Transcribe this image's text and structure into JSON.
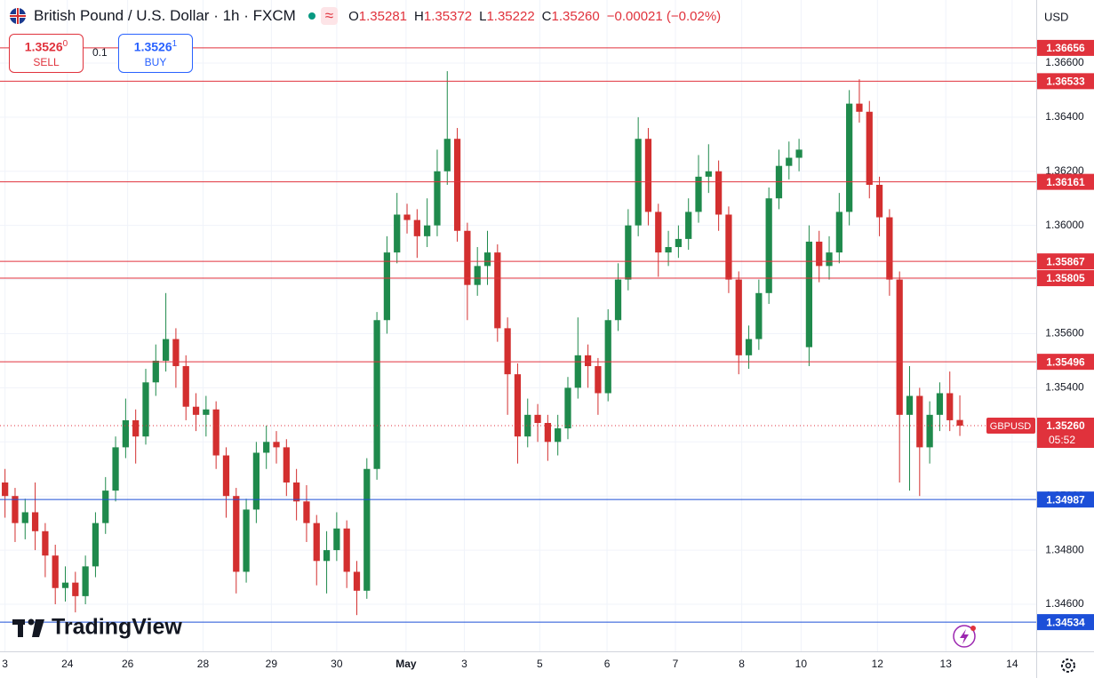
{
  "header": {
    "title": "British Pound / U.S. Dollar · 1h · FXCM",
    "ohlc": [
      {
        "k": "O",
        "v": "1.35281"
      },
      {
        "k": "H",
        "v": "1.35372"
      },
      {
        "k": "L",
        "v": "1.35222"
      },
      {
        "k": "C",
        "v": "1.35260"
      }
    ],
    "change": "−0.00021 (−0.02%)"
  },
  "trade": {
    "sell_price": "1.3526",
    "sell_sup": "0",
    "sell": "SELL",
    "spread": "0.1",
    "buy_price": "1.3526",
    "buy_sup": "1",
    "buy": "BUY"
  },
  "currency": "USD",
  "logo": "TradingView",
  "chart_data": {
    "type": "candlestick",
    "up_color": "#1f8a4c",
    "down_color": "#d32f2f",
    "open": [
      1.3505,
      1.35,
      1.349,
      1.3494,
      1.3487,
      1.3478,
      1.3466,
      1.3468,
      1.3463,
      1.3474,
      1.349,
      1.3502,
      1.3518,
      1.3528,
      1.3522,
      1.3542,
      1.355,
      1.3558,
      1.3548,
      1.3533,
      1.353,
      1.3532,
      1.3515,
      1.35,
      1.3472,
      1.3495,
      1.3516,
      1.352,
      1.3518,
      1.3505,
      1.3498,
      1.349,
      1.3476,
      1.348,
      1.3488,
      1.3472,
      1.3465,
      1.351,
      1.3565,
      1.359,
      1.3604,
      1.3602,
      1.3596,
      1.36,
      1.362,
      1.3632,
      1.3598,
      1.3578,
      1.3585,
      1.359,
      1.3562,
      1.3545,
      1.3522,
      1.353,
      1.3527,
      1.352,
      1.3525,
      1.354,
      1.3552,
      1.3548,
      1.3538,
      1.3565,
      1.358,
      1.36,
      1.3632,
      1.3605,
      1.359,
      1.3592,
      1.3595,
      1.3605,
      1.3618,
      1.362,
      1.3604,
      1.358,
      1.3552,
      1.3558,
      1.3575,
      1.361,
      1.3622,
      1.3625,
      1.3555,
      1.3594,
      1.3585,
      1.359,
      1.3605,
      1.3645,
      1.3642,
      1.3615,
      1.3603,
      1.358,
      1.353,
      1.3537,
      1.3518,
      1.353,
      1.3538,
      1.35281
    ],
    "high": [
      1.351,
      1.3503,
      1.3499,
      1.3505,
      1.349,
      1.3482,
      1.3474,
      1.3472,
      1.3478,
      1.3494,
      1.3507,
      1.3522,
      1.3536,
      1.3532,
      1.3547,
      1.3556,
      1.3575,
      1.3562,
      1.3552,
      1.3538,
      1.3537,
      1.3535,
      1.3518,
      1.3503,
      1.3499,
      1.352,
      1.3526,
      1.3524,
      1.3521,
      1.351,
      1.3504,
      1.3493,
      1.3487,
      1.3494,
      1.3491,
      1.3476,
      1.3514,
      1.3568,
      1.3596,
      1.3612,
      1.3608,
      1.3606,
      1.361,
      1.3628,
      1.3657,
      1.3636,
      1.3601,
      1.3592,
      1.3598,
      1.3593,
      1.3566,
      1.3549,
      1.3536,
      1.3534,
      1.353,
      1.353,
      1.3544,
      1.3566,
      1.3556,
      1.3551,
      1.3569,
      1.3586,
      1.3606,
      1.364,
      1.3636,
      1.3608,
      1.3598,
      1.36,
      1.361,
      1.3626,
      1.363,
      1.3624,
      1.3607,
      1.3583,
      1.3563,
      1.358,
      1.3614,
      1.3628,
      1.3631,
      1.3632,
      1.36,
      1.3598,
      1.3596,
      1.3612,
      1.365,
      1.3654,
      1.3646,
      1.3618,
      1.3606,
      1.3583,
      1.3548,
      1.354,
      1.3535,
      1.3542,
      1.3546,
      1.35372
    ],
    "low": [
      1.3492,
      1.3483,
      1.3484,
      1.348,
      1.347,
      1.346,
      1.3461,
      1.3457,
      1.346,
      1.347,
      1.3486,
      1.3498,
      1.3514,
      1.3512,
      1.3519,
      1.3537,
      1.3546,
      1.354,
      1.3528,
      1.3524,
      1.3522,
      1.351,
      1.3492,
      1.3464,
      1.3468,
      1.349,
      1.351,
      1.3512,
      1.35,
      1.3491,
      1.3483,
      1.3467,
      1.3464,
      1.3476,
      1.3466,
      1.3456,
      1.3462,
      1.3506,
      1.356,
      1.3586,
      1.3597,
      1.3588,
      1.3592,
      1.3596,
      1.3615,
      1.3594,
      1.3565,
      1.3574,
      1.3578,
      1.3557,
      1.353,
      1.3512,
      1.3518,
      1.352,
      1.3513,
      1.3515,
      1.3521,
      1.3536,
      1.354,
      1.353,
      1.3535,
      1.3561,
      1.3576,
      1.3596,
      1.36,
      1.3581,
      1.3585,
      1.3588,
      1.3591,
      1.3601,
      1.3612,
      1.3598,
      1.3575,
      1.3545,
      1.3547,
      1.3554,
      1.3571,
      1.3606,
      1.3617,
      1.362,
      1.3548,
      1.3579,
      1.358,
      1.3586,
      1.36,
      1.3638,
      1.361,
      1.3596,
      1.3574,
      1.3505,
      1.3502,
      1.35,
      1.3512,
      1.3524,
      1.3524,
      1.35222
    ],
    "close": [
      1.35,
      1.349,
      1.3494,
      1.3487,
      1.3478,
      1.3466,
      1.3468,
      1.3463,
      1.3474,
      1.349,
      1.3502,
      1.3518,
      1.3528,
      1.3522,
      1.3542,
      1.355,
      1.3558,
      1.3548,
      1.3533,
      1.353,
      1.3532,
      1.3515,
      1.35,
      1.3472,
      1.3495,
      1.3516,
      1.352,
      1.3518,
      1.3505,
      1.3498,
      1.349,
      1.3476,
      1.348,
      1.3488,
      1.3472,
      1.3465,
      1.351,
      1.3565,
      1.359,
      1.3604,
      1.3602,
      1.3596,
      1.36,
      1.362,
      1.3632,
      1.3598,
      1.3578,
      1.3585,
      1.359,
      1.3562,
      1.3545,
      1.3522,
      1.353,
      1.3527,
      1.352,
      1.3525,
      1.354,
      1.3552,
      1.3548,
      1.3538,
      1.3565,
      1.358,
      1.36,
      1.3632,
      1.3605,
      1.359,
      1.3592,
      1.3595,
      1.3605,
      1.3618,
      1.362,
      1.3604,
      1.358,
      1.3552,
      1.3558,
      1.3575,
      1.361,
      1.3622,
      1.3625,
      1.3628,
      1.3594,
      1.3585,
      1.359,
      1.3605,
      1.3645,
      1.3642,
      1.3615,
      1.3603,
      1.358,
      1.353,
      1.3537,
      1.3518,
      1.353,
      1.3538,
      1.3528,
      1.3526
    ],
    "xlim": [
      -0.5,
      102.6
    ],
    "xticks": [
      {
        "value": 0,
        "label": "3"
      },
      {
        "value": 6.2,
        "label": "24"
      },
      {
        "value": 12.2,
        "label": "26"
      },
      {
        "value": 19.7,
        "label": "28"
      },
      {
        "value": 26.5,
        "label": "29"
      },
      {
        "value": 33,
        "label": "30"
      },
      {
        "value": 39.9,
        "label": "May"
      },
      {
        "value": 45.7,
        "label": "3"
      },
      {
        "value": 53.2,
        "label": "5"
      },
      {
        "value": 59.9,
        "label": "6"
      },
      {
        "value": 66.7,
        "label": "7"
      },
      {
        "value": 73.3,
        "label": "8"
      },
      {
        "value": 79.2,
        "label": "10"
      },
      {
        "value": 86.8,
        "label": "12"
      },
      {
        "value": 93.6,
        "label": "13"
      },
      {
        "value": 100.2,
        "label": "14"
      }
    ],
    "ylim": [
      1.34426,
      1.36833
    ],
    "yticks": [
      {
        "value": 1.346,
        "label": "1.34600"
      },
      {
        "value": 1.348,
        "label": "1.34800"
      },
      {
        "value": 1.35,
        "label": "1.35000"
      },
      {
        "value": 1.352,
        "label": "1.35200"
      },
      {
        "value": 1.354,
        "label": "1.35400"
      },
      {
        "value": 1.356,
        "label": "1.35600"
      },
      {
        "value": 1.358,
        "label": "1.35800"
      },
      {
        "value": 1.36,
        "label": "1.36000"
      },
      {
        "value": 1.362,
        "label": "1.36200"
      },
      {
        "value": 1.364,
        "label": "1.36400"
      },
      {
        "value": 1.366,
        "label": "1.36600"
      }
    ],
    "grid": true,
    "levels": [
      {
        "value": 1.36656,
        "color": "#e0323c"
      },
      {
        "value": 1.36533,
        "color": "#e0323c"
      },
      {
        "value": 1.36161,
        "color": "#e0323c"
      },
      {
        "value": 1.35867,
        "color": "#e0323c"
      },
      {
        "value": 1.35805,
        "color": "#e0323c"
      },
      {
        "value": 1.35496,
        "color": "#e0323c"
      },
      {
        "value": 1.34987,
        "color": "#1c4fd8"
      },
      {
        "value": 1.34534,
        "color": "#1c4fd8"
      }
    ],
    "last_price": {
      "value": 1.3526,
      "label": "1.35260"
    },
    "symbol": "GBPUSD",
    "countdown": "05:52",
    "last_color": "#e0323c"
  }
}
